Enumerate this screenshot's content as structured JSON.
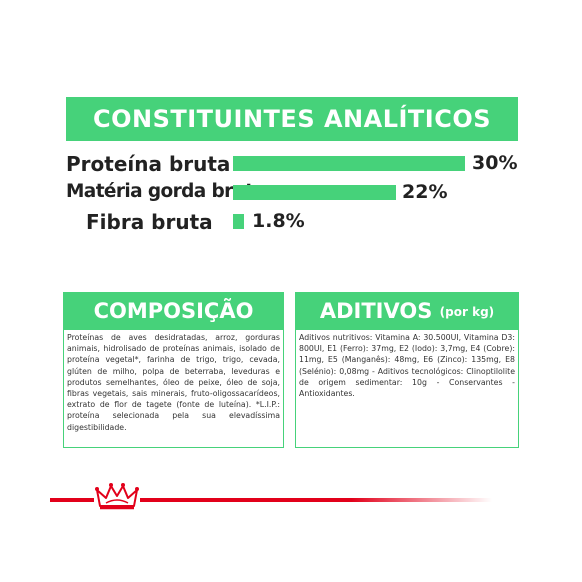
{
  "analytics": {
    "title": "CONSTITUINTES ANALÍTICOS",
    "rows": [
      {
        "label": "Proteína bruta",
        "value": "30%",
        "fraction": 1.0
      },
      {
        "label": "Matéria gorda bruta",
        "value": "22%",
        "fraction": 0.733
      },
      {
        "label": "Fibra bruta",
        "value": "1.8%",
        "fraction": 0.06
      }
    ]
  },
  "composition": {
    "title": "COMPOSIÇÃO",
    "text": "Proteínas de aves desidratadas, arroz, gorduras animais, hidrolisado de proteínas animais, isolado de proteína vegetal*, farinha de trigo, trigo, cevada, glúten de milho, polpa de beterraba, leveduras e produtos semelhantes, óleo de peixe, óleo de soja, fibras vegetais, sais minerais, fruto-oligossacarídeos, extrato de flor de tagete (fonte de luteína). *L.I.P.: proteína selecionada pela sua elevadíssima digestibilidade."
  },
  "additives": {
    "title": "ADITIVOS",
    "subtitle": "(por kg)",
    "text": "Aditivos nutritivos: Vitamina A: 30.500UI, Vitamina D3: 800UI, E1 (Ferro): 37mg, E2 (Iodo): 3,7mg, E4 (Cobre): 11mg, E5 (Manganês): 48mg, E6 (Zinco): 135mg, E8 (Selénio): 0,08mg - Aditivos tecnológicos: Clinoptilolite de origem sedimentar: 10g - Conservantes - Antioxidantes."
  },
  "colors": {
    "accent": "#46d27a",
    "brand_red": "#e2001a"
  },
  "footer": {
    "logo": "crown-icon"
  }
}
